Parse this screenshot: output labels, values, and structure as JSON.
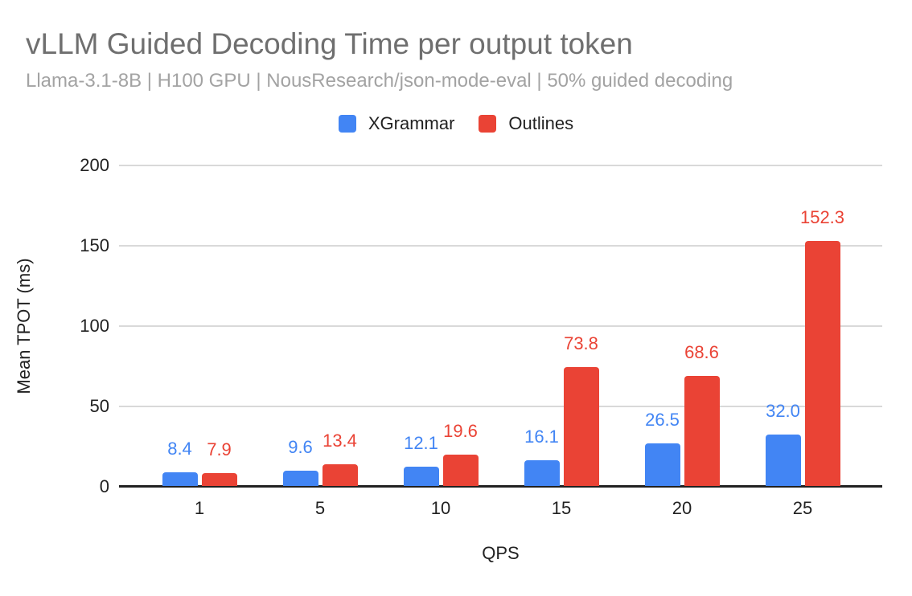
{
  "header": {
    "title": "vLLM Guided Decoding Time per output token",
    "subtitle": "Llama-3.1-8B | H100 GPU | NousResearch/json-mode-eval | 50% guided decoding"
  },
  "chart_data": {
    "type": "bar",
    "title": "vLLM Guided Decoding Time per output token",
    "subtitle": "Llama-3.1-8B | H100 GPU | NousResearch/json-mode-eval | 50% guided decoding",
    "categories": [
      "1",
      "5",
      "10",
      "15",
      "20",
      "25"
    ],
    "series": [
      {
        "name": "XGrammar",
        "color": "#4285F4",
        "values": [
          8.4,
          9.6,
          12.1,
          16.1,
          26.5,
          32.0
        ]
      },
      {
        "name": "Outlines",
        "color": "#EA4335",
        "values": [
          7.9,
          13.4,
          19.6,
          73.8,
          68.6,
          152.3
        ]
      }
    ],
    "xlabel": "QPS",
    "ylabel": "Mean TPOT (ms)",
    "ylim": [
      0,
      200
    ],
    "yticks": [
      0,
      50,
      100,
      150,
      200
    ],
    "grid": true,
    "legend_position": "top",
    "data_labels": true
  },
  "colors": {
    "xgrammar_blue": "#4285F4",
    "outlines_red": "#EA4335",
    "gridline": "#d9d9d9",
    "axis": "#212121",
    "title_gray": "#6f6f6f",
    "subtitle_gray": "#a3a3a3"
  }
}
